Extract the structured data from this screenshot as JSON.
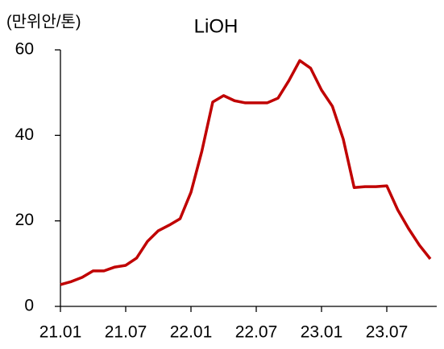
{
  "chart_data": {
    "type": "line",
    "title": "LiOH",
    "y_axis_label": "(만위안/톤)",
    "categories": [
      "21.01",
      null,
      null,
      null,
      null,
      null,
      "21.07",
      null,
      null,
      null,
      null,
      null,
      "22.01",
      null,
      null,
      null,
      null,
      null,
      "22.07",
      null,
      null,
      null,
      null,
      null,
      "23.01",
      null,
      null,
      null,
      null,
      null,
      "23.07",
      null,
      null,
      null,
      null
    ],
    "values": [
      5.1,
      5.8,
      6.8,
      8.3,
      8.3,
      9.2,
      9.6,
      11.3,
      15.2,
      17.7,
      19,
      20.5,
      26.7,
      36.3,
      47.8,
      49.3,
      48.1,
      47.6,
      47.6,
      47.6,
      48.7,
      52.8,
      57.5,
      55.7,
      50.6,
      46.8,
      39.1,
      27.8,
      28,
      28,
      28.2,
      22.6,
      18.2,
      14.3,
      11.1
    ],
    "color": "#c00000",
    "ylim": [
      0,
      60
    ],
    "yticks": [
      0,
      20,
      40,
      60
    ],
    "grid": false
  }
}
